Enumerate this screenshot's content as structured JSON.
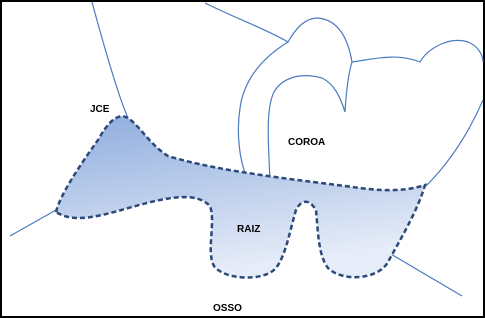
{
  "labels": [
    "JCE",
    "COROA",
    "RAIZ",
    "OSSO"
  ]
}
